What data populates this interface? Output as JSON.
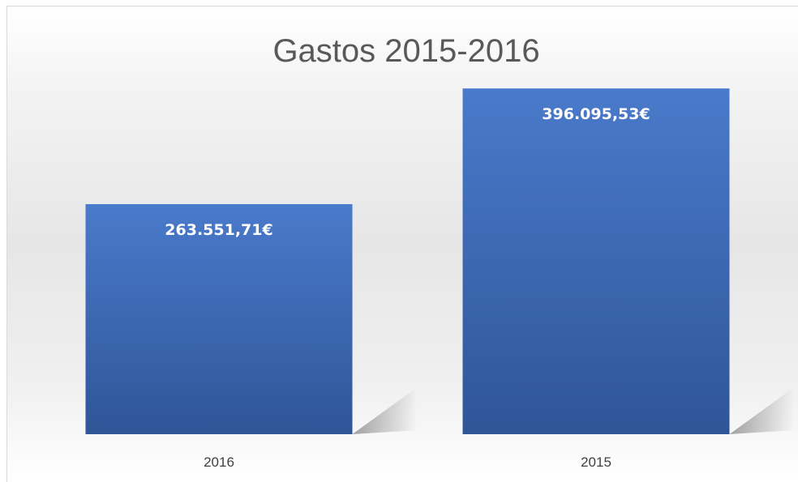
{
  "chart_data": {
    "type": "bar",
    "title": "Gastos 2015-2016",
    "categories": [
      "2016",
      "2015"
    ],
    "values": [
      263551.71,
      396095.53
    ],
    "data_labels": [
      "263.551,71€",
      "396.095,53€"
    ],
    "xlabel": "",
    "ylabel": "",
    "ylim": [
      0,
      490000
    ],
    "grid": false,
    "legend": "none",
    "bar_color": "#4472c4",
    "bar_color_dark": "#2f5597"
  }
}
